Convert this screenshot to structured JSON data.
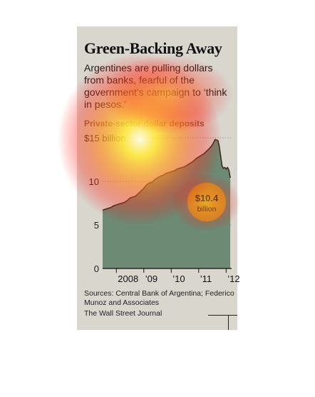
{
  "headline": "Green-Backing Away",
  "subtitle": "Argentines are pulling dollars from banks, fearful of the government's campaign to ‘think in pesos.’",
  "source": "Sources: Central Bank of Argentina; Federico Munoz and Associates",
  "credit": "The Wall Street Journal",
  "colors": {
    "area_fill": "#6c8a74",
    "line": "#3c2a1c",
    "callout": "#c9a227",
    "background": "#d9d6ce"
  },
  "chart_data": {
    "type": "area",
    "title": "Private-sector dollar deposits",
    "ylim": [
      0,
      15
    ],
    "y_ticks": [
      {
        "value": 0,
        "label": "0"
      },
      {
        "value": 5,
        "label": "5"
      },
      {
        "value": 10,
        "label": "10"
      },
      {
        "value": 15,
        "label": "$15 billion"
      }
    ],
    "x_ticks": [
      {
        "value": 2008.0,
        "label": "2008"
      },
      {
        "value": 2009.0,
        "label": "’09"
      },
      {
        "value": 2010.0,
        "label": "’10"
      },
      {
        "value": 2011.0,
        "label": "’11"
      },
      {
        "value": 2012.0,
        "label": "’12"
      }
    ],
    "xlim": [
      2007.5,
      2012.2
    ],
    "x": [
      2007.5,
      2007.6,
      2007.7,
      2007.8,
      2007.9,
      2008.0,
      2008.1,
      2008.2,
      2008.3,
      2008.4,
      2008.5,
      2008.6,
      2008.7,
      2008.8,
      2008.9,
      2009.0,
      2009.1,
      2009.2,
      2009.3,
      2009.4,
      2009.5,
      2009.6,
      2009.7,
      2009.8,
      2009.9,
      2010.0,
      2010.1,
      2010.2,
      2010.3,
      2010.4,
      2010.5,
      2010.6,
      2010.7,
      2010.8,
      2010.9,
      2011.0,
      2011.1,
      2011.2,
      2011.3,
      2011.4,
      2011.5,
      2011.6,
      2011.7,
      2011.75,
      2011.8,
      2011.85,
      2011.9,
      2011.95,
      2012.0,
      2012.05,
      2012.1,
      2012.15
    ],
    "values": [
      6.7,
      6.8,
      6.9,
      7.0,
      7.2,
      7.3,
      7.4,
      7.5,
      7.6,
      7.8,
      8.1,
      8.2,
      8.3,
      8.6,
      8.9,
      9.2,
      9.6,
      9.8,
      9.9,
      10.2,
      10.4,
      10.6,
      10.7,
      10.9,
      11.0,
      11.1,
      11.2,
      11.4,
      11.5,
      11.6,
      11.7,
      11.9,
      12.1,
      12.3,
      12.6,
      12.8,
      13.0,
      13.2,
      13.5,
      13.8,
      14.2,
      14.8,
      14.7,
      14.0,
      12.9,
      11.8,
      11.5,
      11.6,
      11.4,
      11.6,
      11.3,
      10.4
    ],
    "callout": {
      "value": "$10.4",
      "unit": "billion"
    }
  }
}
